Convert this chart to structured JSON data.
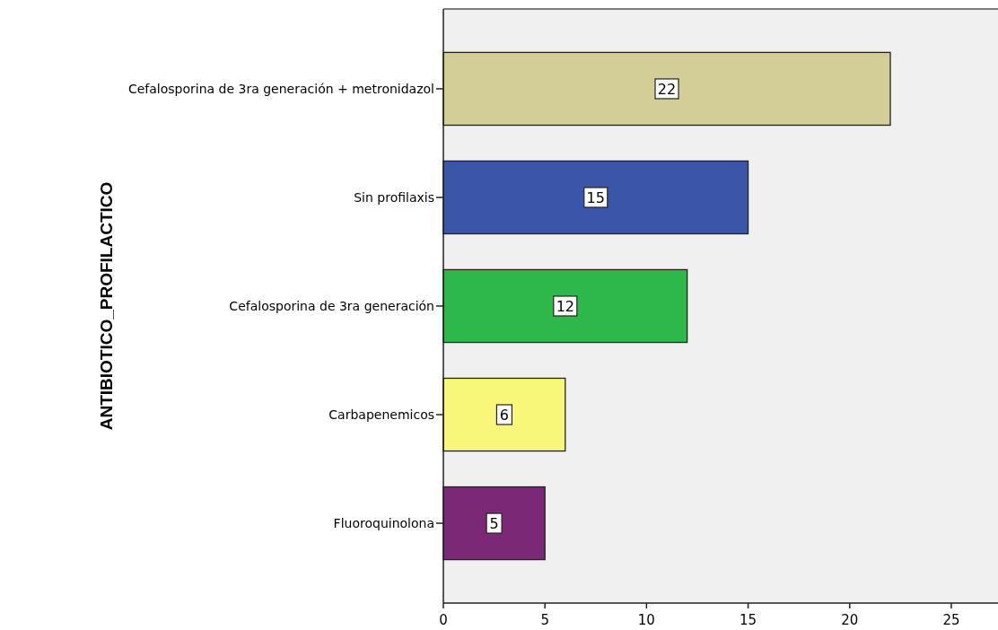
{
  "chart_data": {
    "type": "bar",
    "orientation": "horizontal",
    "ylabel": "ANTIBIOTICO_PROFILACTICO",
    "categories": [
      "Cefalosporina de 3ra generación + metronidazol",
      "Sin profilaxis",
      "Cefalosporina de 3ra generación",
      "Carbapenemicos",
      "Fluoroquinolona"
    ],
    "values": [
      22,
      15,
      12,
      6,
      5
    ],
    "colors": [
      "#d3ce98",
      "#3b56a8",
      "#2eb84a",
      "#f8f77a",
      "#7b2877"
    ],
    "xlim": [
      0,
      27.3
    ],
    "xticks": [
      0,
      5,
      10,
      15,
      20,
      25
    ],
    "data_labels": true,
    "grid": false
  }
}
